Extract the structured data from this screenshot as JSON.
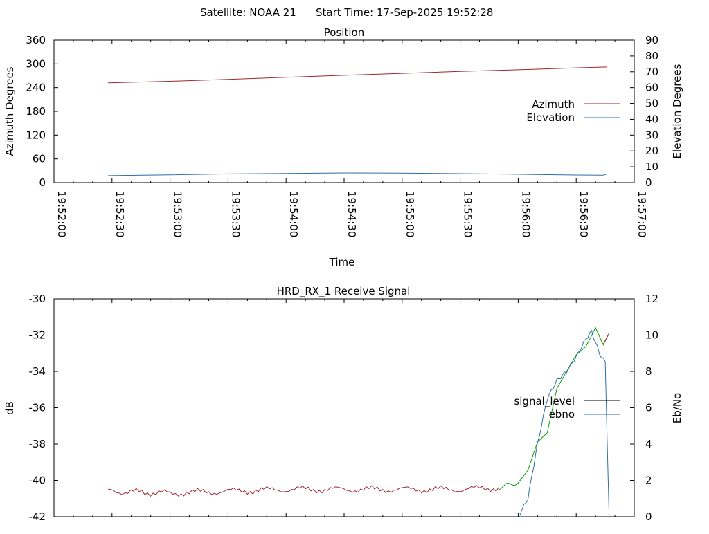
{
  "header": {
    "satellite_label": "Satellite: NOAA 21",
    "start_label": "Start Time: 17-Sep-2025 19:52:28"
  },
  "colors": {
    "azimuth": "#a0262a",
    "elevation": "#2e6da4",
    "signal_level": "#000000",
    "ebno": "#2e6da4",
    "signal_low": "#a0262a",
    "signal_high": "#00a000"
  },
  "chart_data": [
    {
      "type": "line",
      "title": "Position",
      "xlabel": "Time",
      "ylabel": "Azimuth Degrees",
      "y2label": "Elevation Degrees",
      "xlim": [
        "19:52:00",
        "19:57:00"
      ],
      "ylim": [
        0,
        360
      ],
      "y2lim": [
        0,
        90
      ],
      "x_ticks": [
        "19:52:00",
        "19:52:30",
        "19:53:00",
        "19:53:30",
        "19:54:00",
        "19:54:30",
        "19:55:00",
        "19:55:30",
        "19:56:00",
        "19:56:30",
        "19:57:00"
      ],
      "y_ticks": [
        "0",
        "60",
        "120",
        "180",
        "240",
        "300",
        "360"
      ],
      "y2_ticks": [
        "0",
        "10",
        "20",
        "30",
        "40",
        "50",
        "60",
        "70",
        "80",
        "90"
      ],
      "legend_position": "right",
      "series": [
        {
          "name": "Azimuth",
          "axis": "y",
          "x": [
            "19:52:28",
            "19:53:00",
            "19:53:30",
            "19:54:00",
            "19:54:30",
            "19:55:00",
            "19:55:30",
            "19:56:00",
            "19:56:30",
            "19:56:46"
          ],
          "y": [
            252,
            256,
            261,
            266,
            271,
            276,
            281,
            285,
            290,
            292
          ]
        },
        {
          "name": "Elevation",
          "axis": "y2",
          "x": [
            "19:52:28",
            "19:53:00",
            "19:53:30",
            "19:54:00",
            "19:54:30",
            "19:55:00",
            "19:55:30",
            "19:56:00",
            "19:56:30",
            "19:56:44",
            "19:56:46"
          ],
          "y": [
            4.4,
            4.9,
            5.5,
            5.8,
            6.1,
            6.0,
            5.7,
            5.3,
            4.8,
            4.7,
            5.5
          ]
        }
      ]
    },
    {
      "type": "line",
      "title": "HRD_RX_1 Receive Signal",
      "ylabel": "dB",
      "y2label": "Eb/No",
      "xlim": [
        "19:52:00",
        "19:57:00"
      ],
      "ylim": [
        -42,
        -30
      ],
      "y2lim": [
        0,
        12
      ],
      "y_ticks": [
        "-42",
        "-40",
        "-38",
        "-36",
        "-34",
        "-32",
        "-30"
      ],
      "y2_ticks": [
        "0",
        "2",
        "4",
        "6",
        "8",
        "10",
        "12"
      ],
      "legend_position": "right",
      "series": [
        {
          "name": "signal_level",
          "axis": "y",
          "x": [
            "19:52:28",
            "19:53:00",
            "19:53:30",
            "19:54:00",
            "19:54:30",
            "19:55:00",
            "19:55:30",
            "19:55:50",
            "19:56:00",
            "19:56:05",
            "19:56:10",
            "19:56:15",
            "19:56:20",
            "19:56:25",
            "19:56:30",
            "19:56:35",
            "19:56:40",
            "19:56:44",
            "19:56:47"
          ],
          "y": [
            -40.6,
            -40.7,
            -40.6,
            -40.5,
            -40.5,
            -40.5,
            -40.5,
            -40.4,
            -40.1,
            -39.5,
            -38.0,
            -37.5,
            -35.0,
            -34.0,
            -33.0,
            -32.5,
            -31.5,
            -32.5,
            -31.9
          ]
        },
        {
          "name": "ebno",
          "axis": "y2",
          "x": [
            "19:56:00",
            "19:56:05",
            "19:56:10",
            "19:56:15",
            "19:56:20",
            "19:56:25",
            "19:56:30",
            "19:56:35",
            "19:56:38",
            "19:56:42",
            "19:56:45",
            "19:56:47"
          ],
          "y": [
            0,
            1.0,
            4.0,
            6.5,
            7.5,
            8.0,
            8.8,
            9.8,
            10.2,
            9.0,
            8.5,
            0
          ]
        }
      ]
    }
  ]
}
